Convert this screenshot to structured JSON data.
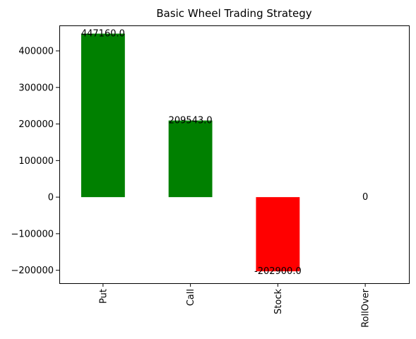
{
  "chart_data": {
    "type": "bar",
    "title": "Basic Wheel Trading Strategy",
    "xlabel": "",
    "ylabel": "",
    "categories": [
      "Put",
      "Call",
      "Stock",
      "RollOver"
    ],
    "values": [
      447160.0,
      209543.0,
      -202900.0,
      0
    ],
    "value_labels": [
      "447160.0",
      "209543.0",
      "-202900.0",
      "0"
    ],
    "bar_colors": [
      "#008000",
      "#008000",
      "#ff0000",
      "#ff0000"
    ],
    "yticks": [
      -200000,
      -100000,
      0,
      100000,
      200000,
      300000,
      400000
    ],
    "ytick_labels": [
      "−200000",
      "−100000",
      "0",
      "100000",
      "200000",
      "300000",
      "400000"
    ],
    "ylim": [
      -235403,
      469563
    ],
    "grid": false,
    "legend": "none"
  }
}
